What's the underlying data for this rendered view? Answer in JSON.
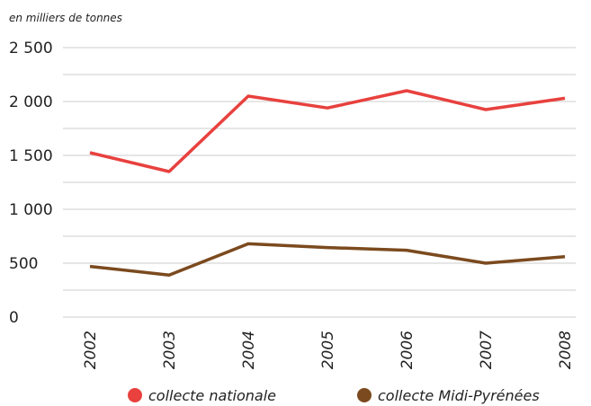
{
  "chart_data": {
    "type": "line",
    "subtitle": "en milliers de tonnes",
    "categories": [
      "2002",
      "2003",
      "2004",
      "2005",
      "2006",
      "2007",
      "2008"
    ],
    "series": [
      {
        "name": "collecte nationale",
        "color": "#e8413e",
        "values": [
          1525,
          1350,
          2050,
          1940,
          2100,
          1925,
          2030
        ]
      },
      {
        "name": "collecte Midi-Pyrénées",
        "color": "#7b4a1e",
        "values": [
          470,
          390,
          680,
          645,
          620,
          500,
          560
        ]
      }
    ],
    "ylim": [
      0,
      2500
    ],
    "yticks": [
      0,
      500,
      {
        "value": 1000,
        "label": "1 000"
      },
      {
        "value": 1500,
        "label": "1 500"
      },
      {
        "value": 2000,
        "label": "2 000"
      },
      {
        "value": 2500,
        "label": "2 500"
      }
    ],
    "minor_yticks": [
      250,
      750,
      1250,
      1750,
      2250
    ],
    "grid": true
  }
}
